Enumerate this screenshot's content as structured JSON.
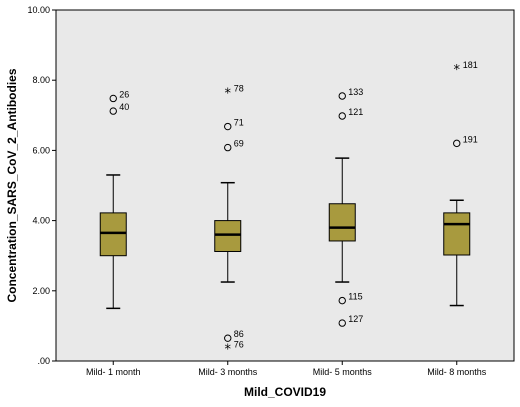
{
  "colors": {
    "plot_background": "#e9e9e9",
    "box_fill": "#a89a3e",
    "box_stroke": "#000000"
  },
  "chart_data": {
    "type": "boxplot",
    "xlabel": "Mild_COVID19",
    "ylabel": "Concentration_SARS_CoV_2_Antibodies",
    "ylim": [
      0,
      10
    ],
    "yticks": [
      ".00",
      "2.00",
      "4.00",
      "6.00",
      "8.00",
      "10.00"
    ],
    "grid": false,
    "categories": [
      "Mild- 1 month",
      "Mild- 3 months",
      "Mild- 5 months",
      "Mild- 8 months"
    ],
    "boxes": [
      {
        "category": "Mild- 1 month",
        "whisker_low": 1.5,
        "q1": 3.0,
        "median": 3.65,
        "q3": 4.22,
        "whisker_high": 5.3,
        "outliers": [
          {
            "value": 7.48,
            "label": "26",
            "marker": "circle"
          },
          {
            "value": 7.12,
            "label": "40",
            "marker": "circle"
          }
        ]
      },
      {
        "category": "Mild- 3 months",
        "whisker_low": 2.25,
        "q1": 3.12,
        "median": 3.6,
        "q3": 4.0,
        "whisker_high": 5.08,
        "outliers": [
          {
            "value": 7.65,
            "label": "78",
            "marker": "star"
          },
          {
            "value": 6.68,
            "label": "71",
            "marker": "circle"
          },
          {
            "value": 6.08,
            "label": "69",
            "marker": "circle"
          },
          {
            "value": 0.65,
            "label": "86",
            "marker": "circle"
          },
          {
            "value": 0.35,
            "label": "76",
            "marker": "star"
          }
        ]
      },
      {
        "category": "Mild- 5 months",
        "whisker_low": 2.25,
        "q1": 3.42,
        "median": 3.8,
        "q3": 4.48,
        "whisker_high": 5.78,
        "outliers": [
          {
            "value": 7.55,
            "label": "133",
            "marker": "circle"
          },
          {
            "value": 6.98,
            "label": "121",
            "marker": "circle"
          },
          {
            "value": 1.72,
            "label": "115",
            "marker": "circle"
          },
          {
            "value": 1.08,
            "label": "127",
            "marker": "circle"
          }
        ]
      },
      {
        "category": "Mild- 8 months",
        "whisker_low": 1.58,
        "q1": 3.02,
        "median": 3.9,
        "q3": 4.22,
        "whisker_high": 4.58,
        "outliers": [
          {
            "value": 8.32,
            "label": "181",
            "marker": "star"
          },
          {
            "value": 6.2,
            "label": "191",
            "marker": "circle"
          }
        ]
      }
    ]
  }
}
